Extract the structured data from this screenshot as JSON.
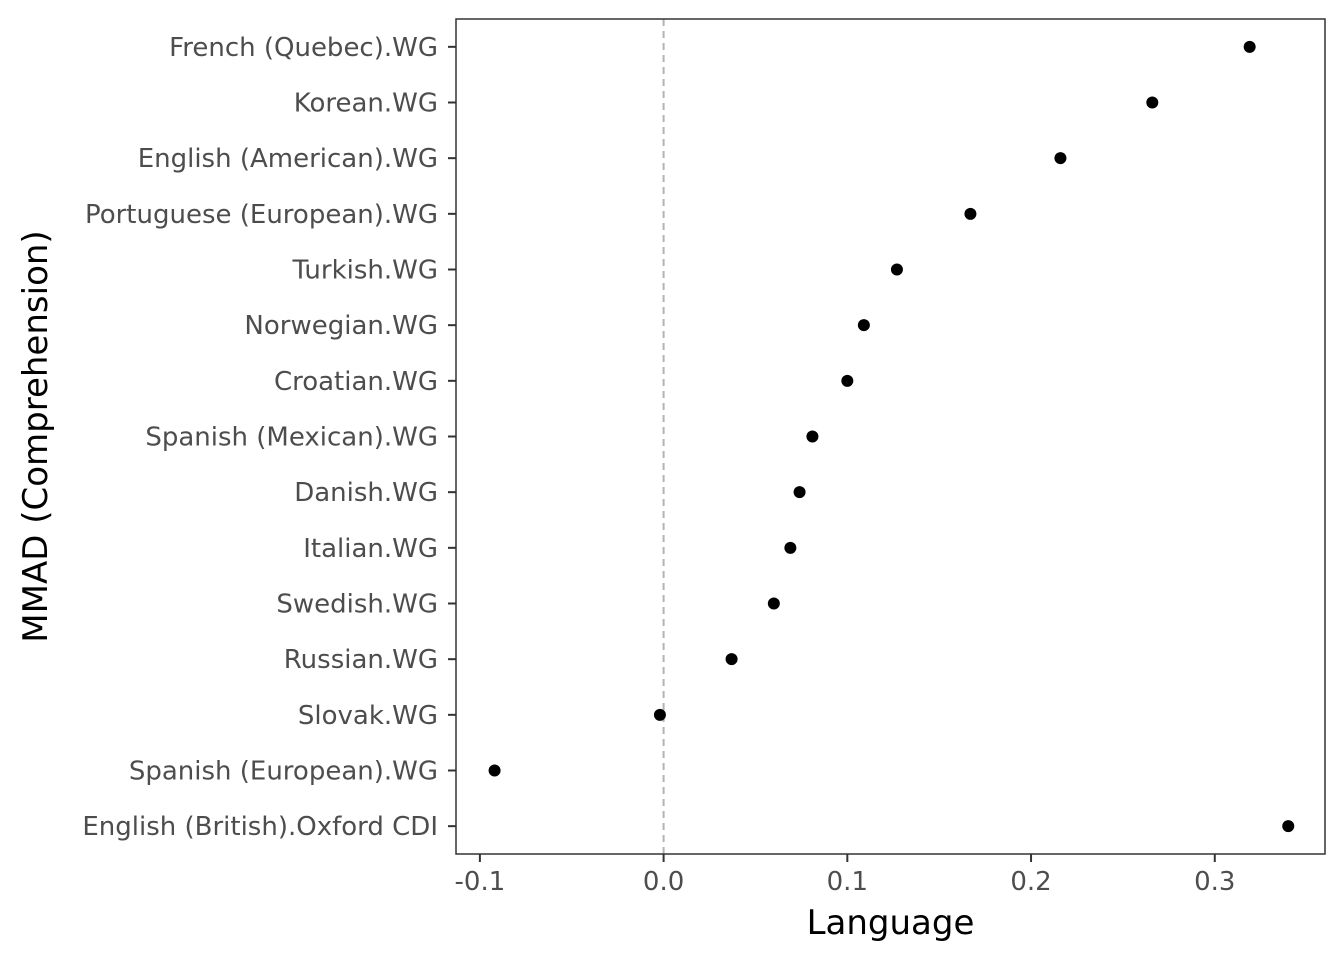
{
  "chart_data": {
    "type": "scatter",
    "xlabel": "Language",
    "ylabel": "MMAD (Comprehension)",
    "xlim": [
      -0.113,
      0.36
    ],
    "x_ticks": [
      "-0.1",
      "0.0",
      "0.1",
      "0.2",
      "0.3"
    ],
    "x_tick_values": [
      -0.1,
      0.0,
      0.1,
      0.2,
      0.3
    ],
    "reference_line": {
      "x": 0,
      "style": "dashed",
      "color": "#b3b3b3"
    },
    "grid": false,
    "point_color": "#000000",
    "points": [
      {
        "label": "French (Quebec).WG",
        "value": 0.319
      },
      {
        "label": "Korean.WG",
        "value": 0.266
      },
      {
        "label": "English (American).WG",
        "value": 0.216
      },
      {
        "label": "Portuguese (European).WG",
        "value": 0.167
      },
      {
        "label": "Turkish.WG",
        "value": 0.127
      },
      {
        "label": "Norwegian.WG",
        "value": 0.109
      },
      {
        "label": "Croatian.WG",
        "value": 0.1
      },
      {
        "label": "Spanish (Mexican).WG",
        "value": 0.081
      },
      {
        "label": "Danish.WG",
        "value": 0.074
      },
      {
        "label": "Italian.WG",
        "value": 0.069
      },
      {
        "label": "Swedish.WG",
        "value": 0.06
      },
      {
        "label": "Russian.WG",
        "value": 0.037
      },
      {
        "label": "Slovak.WG",
        "value": -0.002
      },
      {
        "label": "Spanish (European).WG",
        "value": -0.092
      },
      {
        "label": "English (British).Oxford CDI",
        "value": 0.34
      }
    ]
  }
}
